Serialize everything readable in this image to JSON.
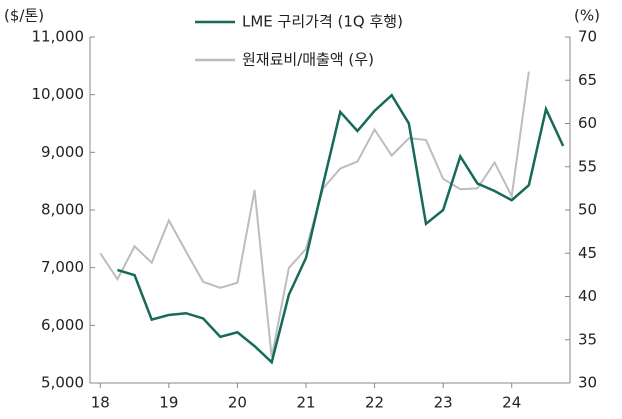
{
  "chart_data": {
    "type": "line",
    "y_unit": "($/톤)",
    "y2_unit": "(%)",
    "xlim": [
      17.85,
      24.85
    ],
    "xticks": [
      18,
      19,
      20,
      21,
      22,
      23,
      24
    ],
    "ylim": [
      5000,
      11000
    ],
    "yticks": [
      {
        "value": 5000,
        "label": "5,000"
      },
      {
        "value": 6000,
        "label": "6,000"
      },
      {
        "value": 7000,
        "label": "7,000"
      },
      {
        "value": 8000,
        "label": "8,000"
      },
      {
        "value": 9000,
        "label": "9,000"
      },
      {
        "value": 10000,
        "label": "10,000"
      },
      {
        "value": 11000,
        "label": "11,000"
      }
    ],
    "y2lim": [
      30,
      70
    ],
    "y2ticks": [
      30,
      35,
      40,
      45,
      50,
      55,
      60,
      65,
      70
    ],
    "series": [
      {
        "name": "LME 구리가격 (1Q 후행)",
        "color": "#17695a",
        "axis": "y",
        "x": [
          18.25,
          18.5,
          18.75,
          19,
          19.25,
          19.5,
          19.75,
          20,
          20.25,
          20.5,
          20.75,
          21,
          21.25,
          21.5,
          21.75,
          22,
          22.25,
          22.5,
          22.75,
          23,
          23.25,
          23.5,
          23.75,
          24,
          24.25,
          24.5,
          24.75
        ],
        "values": [
          6960,
          6870,
          6100,
          6180,
          6210,
          6120,
          5800,
          5880,
          5640,
          5360,
          6530,
          7170,
          8450,
          9700,
          9370,
          9720,
          9990,
          9500,
          7760,
          8000,
          8930,
          8460,
          8330,
          8170,
          8430,
          9750,
          9110
        ]
      },
      {
        "name": "원재료비/매출액 (우)",
        "color": "#bdbdbd",
        "axis": "y2",
        "x": [
          18,
          18.25,
          18.5,
          18.75,
          19,
          19.25,
          19.5,
          19.75,
          20,
          20.25,
          20.5,
          20.75,
          21,
          21.25,
          21.5,
          21.75,
          22,
          22.25,
          22.5,
          22.75,
          23,
          23.25,
          23.5,
          23.75,
          24,
          24.25
        ],
        "values": [
          45,
          42,
          45.8,
          43.9,
          48.8,
          45.2,
          41.7,
          41,
          41.6,
          52.3,
          33,
          43.3,
          45.5,
          52.5,
          54.8,
          55.6,
          59.3,
          56.3,
          58.3,
          58.1,
          53.6,
          52.4,
          52.5,
          55.5,
          51.6,
          66
        ]
      }
    ]
  }
}
